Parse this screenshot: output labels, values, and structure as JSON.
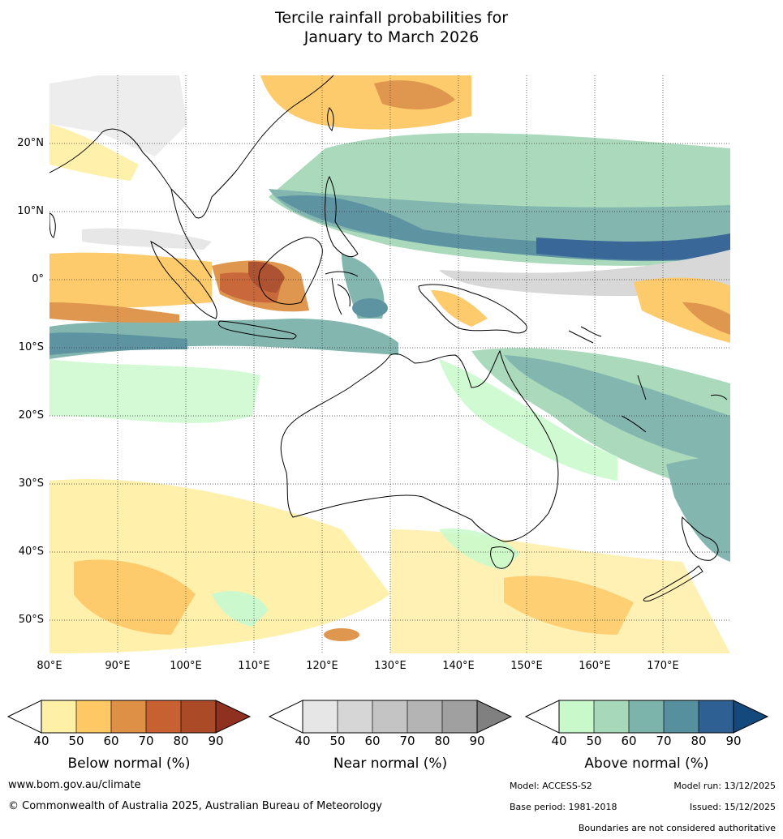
{
  "title_line1": "Tercile rainfall probabilities for",
  "title_line2": "January to March 2026",
  "lat_labels": [
    "20°N",
    "10°N",
    "0°",
    "10°S",
    "20°S",
    "30°S",
    "40°S",
    "50°S"
  ],
  "lon_labels": [
    "80°E",
    "90°E",
    "100°E",
    "110°E",
    "120°E",
    "130°E",
    "140°E",
    "150°E",
    "160°E",
    "170°E"
  ],
  "colorbars": [
    {
      "name": "Below normal (%)",
      "colors": [
        "#fff0a8",
        "#fec965",
        "#de9146",
        "#c76131",
        "#aa4a27",
        "#8f3020"
      ],
      "ticks": [
        "40",
        "50",
        "60",
        "70",
        "80",
        "90"
      ]
    },
    {
      "name": "Near normal (%)",
      "colors": [
        "#e6e6e6",
        "#d6d6d6",
        "#c4c4c4",
        "#b4b4b4",
        "#a0a0a0",
        "#808080"
      ],
      "ticks": [
        "40",
        "50",
        "60",
        "70",
        "80",
        "90"
      ]
    },
    {
      "name": "Above normal (%)",
      "colors": [
        "#c9f9cb",
        "#a6d8b9",
        "#7cb3aa",
        "#568f9e",
        "#2f6093",
        "#14497d"
      ],
      "ticks": [
        "40",
        "50",
        "60",
        "70",
        "80",
        "90"
      ]
    }
  ],
  "footer": {
    "url": "www.bom.gov.au/climate",
    "copyright": "© Commonwealth of Australia 2025, Australian Bureau of Meteorology",
    "model": "Model: ACCESS-S2",
    "model_run": "Model run: 13/12/2025",
    "base_period": "Base period: 1981-2018",
    "issued": "Issued: 15/12/2025",
    "disclaimer": "Boundaries are not considered authoritative"
  }
}
